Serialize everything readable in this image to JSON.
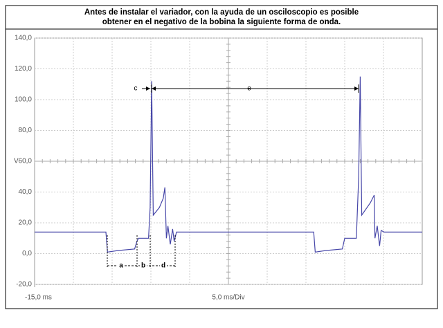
{
  "chart_data": {
    "type": "line",
    "title": [
      "Antes de instalar el variador, con la ayuda de un osciloscopio es posible",
      "obtener en el negativo de la bobina la siguiente forma de onda."
    ],
    "y_unit": "V",
    "x_label": "5,0 ms/Div",
    "x": [
      -15.0,
      -5.8,
      -5.6,
      -4.3,
      -2.1,
      -1.8,
      -1.6,
      -0.3,
      -0.1,
      0.1,
      0.3,
      1.1,
      1.6,
      1.8,
      2.0,
      2.2,
      2.5,
      2.8,
      3.0,
      3.3,
      21.0,
      21.2,
      22.5,
      24.7,
      25.0,
      26.5,
      26.8,
      27.0,
      27.2,
      28.3,
      28.8,
      28.9,
      29.2,
      29.5,
      29.7,
      30.1,
      35.0
    ],
    "series": [
      {
        "color": "#4646a8",
        "values": [
          14,
          14,
          1,
          2,
          3,
          8,
          10,
          10,
          30,
          112,
          25,
          30,
          36,
          43,
          10,
          18,
          6,
          16,
          8,
          14,
          14,
          1,
          2,
          3,
          10,
          10,
          50,
          115,
          25,
          33,
          38,
          10,
          18,
          5,
          15,
          14,
          14
        ]
      }
    ],
    "annotations": [
      "c",
      "e",
      "a",
      "b",
      "d"
    ],
    "xlim": [
      -15,
      35
    ],
    "xticks": [
      {
        "value": -15,
        "label": "-15,0 ms"
      }
    ],
    "ylim": [
      -20,
      140
    ],
    "yticks": [
      {
        "value": -20,
        "label": "-20,0"
      },
      {
        "value": 0,
        "label": "0,0"
      },
      {
        "value": 20,
        "label": "20,0"
      },
      {
        "value": 40,
        "label": "40,0"
      },
      {
        "value": 60,
        "label": "60,0"
      },
      {
        "value": 80,
        "label": "80,0"
      },
      {
        "value": 100,
        "label": "100,0"
      },
      {
        "value": 120,
        "label": "120,0"
      },
      {
        "value": 140,
        "label": "140,0"
      }
    ],
    "grid": true
  }
}
